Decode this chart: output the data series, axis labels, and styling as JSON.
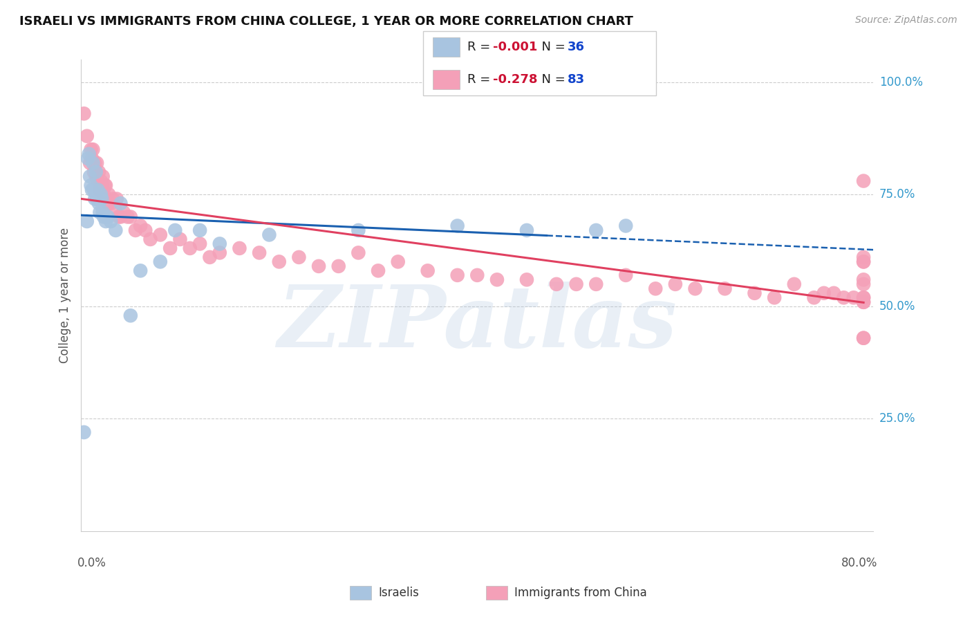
{
  "title": "ISRAELI VS IMMIGRANTS FROM CHINA COLLEGE, 1 YEAR OR MORE CORRELATION CHART",
  "source_text": "Source: ZipAtlas.com",
  "ylabel": "College, 1 year or more",
  "legend_label1": "Israelis",
  "legend_label2": "Immigrants from China",
  "r1": -0.001,
  "n1": 36,
  "r2": -0.278,
  "n2": 83,
  "xlim": [
    0.0,
    0.8
  ],
  "ylim": [
    0.0,
    1.05
  ],
  "color_blue": "#a8c4e0",
  "color_pink": "#f4a0b8",
  "line_color_blue": "#1a60b0",
  "line_color_pink": "#e04060",
  "background_color": "#ffffff",
  "watermark": "ZIPatlas",
  "blue_x": [
    0.003,
    0.006,
    0.007,
    0.008,
    0.009,
    0.01,
    0.011,
    0.012,
    0.013,
    0.014,
    0.015,
    0.016,
    0.017,
    0.018,
    0.019,
    0.02,
    0.021,
    0.022,
    0.023,
    0.025,
    0.027,
    0.03,
    0.035,
    0.04,
    0.05,
    0.06,
    0.08,
    0.095,
    0.12,
    0.14,
    0.19,
    0.28,
    0.38,
    0.45,
    0.52,
    0.55
  ],
  "blue_y": [
    0.22,
    0.69,
    0.83,
    0.84,
    0.79,
    0.77,
    0.76,
    0.82,
    0.76,
    0.74,
    0.8,
    0.74,
    0.76,
    0.73,
    0.71,
    0.75,
    0.74,
    0.71,
    0.7,
    0.69,
    0.7,
    0.69,
    0.67,
    0.73,
    0.48,
    0.58,
    0.6,
    0.67,
    0.67,
    0.64,
    0.66,
    0.67,
    0.68,
    0.67,
    0.67,
    0.68
  ],
  "pink_x": [
    0.003,
    0.006,
    0.009,
    0.01,
    0.011,
    0.012,
    0.013,
    0.014,
    0.015,
    0.016,
    0.017,
    0.018,
    0.019,
    0.02,
    0.021,
    0.022,
    0.023,
    0.024,
    0.025,
    0.027,
    0.028,
    0.03,
    0.032,
    0.034,
    0.036,
    0.038,
    0.04,
    0.043,
    0.047,
    0.05,
    0.055,
    0.06,
    0.065,
    0.07,
    0.08,
    0.09,
    0.1,
    0.11,
    0.12,
    0.13,
    0.14,
    0.16,
    0.18,
    0.2,
    0.22,
    0.24,
    0.26,
    0.28,
    0.3,
    0.32,
    0.35,
    0.38,
    0.4,
    0.42,
    0.45,
    0.48,
    0.5,
    0.52,
    0.55,
    0.58,
    0.6,
    0.62,
    0.65,
    0.68,
    0.7,
    0.72,
    0.74,
    0.75,
    0.76,
    0.77,
    0.78,
    0.79,
    0.79,
    0.79,
    0.79,
    0.79,
    0.79,
    0.79,
    0.79,
    0.79,
    0.79,
    0.79,
    0.79
  ],
  "pink_y": [
    0.93,
    0.88,
    0.82,
    0.85,
    0.83,
    0.85,
    0.8,
    0.82,
    0.79,
    0.82,
    0.78,
    0.8,
    0.76,
    0.78,
    0.77,
    0.79,
    0.75,
    0.77,
    0.77,
    0.73,
    0.75,
    0.73,
    0.74,
    0.72,
    0.74,
    0.7,
    0.7,
    0.71,
    0.7,
    0.7,
    0.67,
    0.68,
    0.67,
    0.65,
    0.66,
    0.63,
    0.65,
    0.63,
    0.64,
    0.61,
    0.62,
    0.63,
    0.62,
    0.6,
    0.61,
    0.59,
    0.59,
    0.62,
    0.58,
    0.6,
    0.58,
    0.57,
    0.57,
    0.56,
    0.56,
    0.55,
    0.55,
    0.55,
    0.57,
    0.54,
    0.55,
    0.54,
    0.54,
    0.53,
    0.52,
    0.55,
    0.52,
    0.53,
    0.53,
    0.52,
    0.52,
    0.78,
    0.6,
    0.55,
    0.43,
    0.61,
    0.52,
    0.56,
    0.51,
    0.43,
    0.6,
    0.52,
    0.51
  ],
  "blue_line_solid_end": 0.47,
  "pink_line_end": 0.79,
  "ytick_vals": [
    0.25,
    0.5,
    0.75,
    1.0
  ],
  "ytick_labels": [
    "25.0%",
    "50.0%",
    "75.0%",
    "100.0%"
  ]
}
